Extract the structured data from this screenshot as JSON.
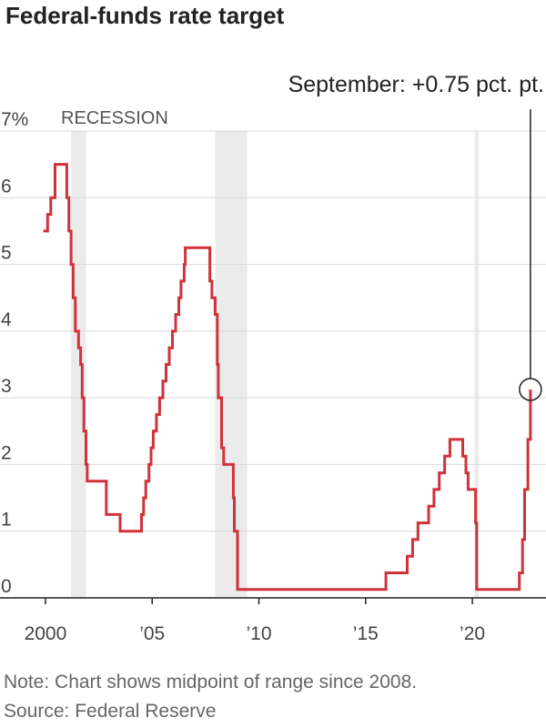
{
  "title": "Federal-funds rate target",
  "annotation": "September: +0.75 pct. pt.",
  "recession_label": "RECESSION",
  "note": "Note: Chart shows midpoint of range since 2008.",
  "source": "Source: Federal Reserve",
  "colors": {
    "line": "#d0323a",
    "grid": "#d9d9d9",
    "recession": "#ebebeb",
    "axis": "#222222"
  },
  "chart_data": {
    "type": "line",
    "title": "Federal-funds rate target",
    "xlim": [
      1999.15,
      2023.45
    ],
    "ylim": [
      0,
      7
    ],
    "grid": "horizontal",
    "y_ticks": [
      {
        "value": 0,
        "label": "0"
      },
      {
        "value": 1,
        "label": "1"
      },
      {
        "value": 2,
        "label": "2"
      },
      {
        "value": 3,
        "label": "3"
      },
      {
        "value": 4,
        "label": "4"
      },
      {
        "value": 5,
        "label": "5"
      },
      {
        "value": 6,
        "label": "6"
      },
      {
        "value": 7,
        "label": "7%"
      }
    ],
    "x_ticks": [
      {
        "value": 2000,
        "label": "2000"
      },
      {
        "value": 2005,
        "label": "’05"
      },
      {
        "value": 2010,
        "label": "’10"
      },
      {
        "value": 2015,
        "label": "’15"
      },
      {
        "value": 2020,
        "label": "’20"
      }
    ],
    "recessions": [
      [
        2001.2,
        2001.9
      ],
      [
        2007.95,
        2009.45
      ],
      [
        2020.1,
        2020.3
      ]
    ],
    "series": [
      {
        "points": [
          [
            1999.9,
            5.5
          ],
          [
            2000.1,
            5.75
          ],
          [
            2000.25,
            6.0
          ],
          [
            2000.45,
            6.5
          ],
          [
            2001.0,
            6.0
          ],
          [
            2001.1,
            5.5
          ],
          [
            2001.2,
            5.0
          ],
          [
            2001.3,
            4.5
          ],
          [
            2001.4,
            4.0
          ],
          [
            2001.55,
            3.75
          ],
          [
            2001.65,
            3.5
          ],
          [
            2001.72,
            3.0
          ],
          [
            2001.8,
            2.5
          ],
          [
            2001.9,
            2.0
          ],
          [
            2001.96,
            1.75
          ],
          [
            2002.85,
            1.25
          ],
          [
            2003.5,
            1.0
          ],
          [
            2004.5,
            1.25
          ],
          [
            2004.6,
            1.5
          ],
          [
            2004.7,
            1.75
          ],
          [
            2004.85,
            2.0
          ],
          [
            2004.95,
            2.25
          ],
          [
            2005.05,
            2.5
          ],
          [
            2005.2,
            2.75
          ],
          [
            2005.35,
            3.0
          ],
          [
            2005.5,
            3.25
          ],
          [
            2005.65,
            3.5
          ],
          [
            2005.8,
            3.75
          ],
          [
            2005.95,
            4.0
          ],
          [
            2006.1,
            4.25
          ],
          [
            2006.25,
            4.5
          ],
          [
            2006.35,
            4.75
          ],
          [
            2006.5,
            5.0
          ],
          [
            2006.55,
            5.25
          ],
          [
            2007.7,
            4.75
          ],
          [
            2007.8,
            4.5
          ],
          [
            2007.95,
            4.25
          ],
          [
            2008.05,
            3.5
          ],
          [
            2008.1,
            3.0
          ],
          [
            2008.25,
            2.25
          ],
          [
            2008.35,
            2.0
          ],
          [
            2008.8,
            1.5
          ],
          [
            2008.85,
            1.0
          ],
          [
            2009.0,
            0.125
          ],
          [
            2015.95,
            0.375
          ],
          [
            2016.95,
            0.625
          ],
          [
            2017.2,
            0.875
          ],
          [
            2017.45,
            1.125
          ],
          [
            2017.95,
            1.375
          ],
          [
            2018.2,
            1.625
          ],
          [
            2018.45,
            1.875
          ],
          [
            2018.7,
            2.125
          ],
          [
            2018.95,
            2.375
          ],
          [
            2019.55,
            2.125
          ],
          [
            2019.7,
            1.875
          ],
          [
            2019.8,
            1.625
          ],
          [
            2020.15,
            1.125
          ],
          [
            2020.2,
            0.125
          ],
          [
            2022.2,
            0.375
          ],
          [
            2022.35,
            0.875
          ],
          [
            2022.45,
            1.625
          ],
          [
            2022.6,
            2.375
          ],
          [
            2022.72,
            3.125
          ]
        ]
      }
    ],
    "highlight": {
      "x": 2022.72,
      "y": 3.125,
      "label": "September: +0.75 pct. pt."
    }
  }
}
